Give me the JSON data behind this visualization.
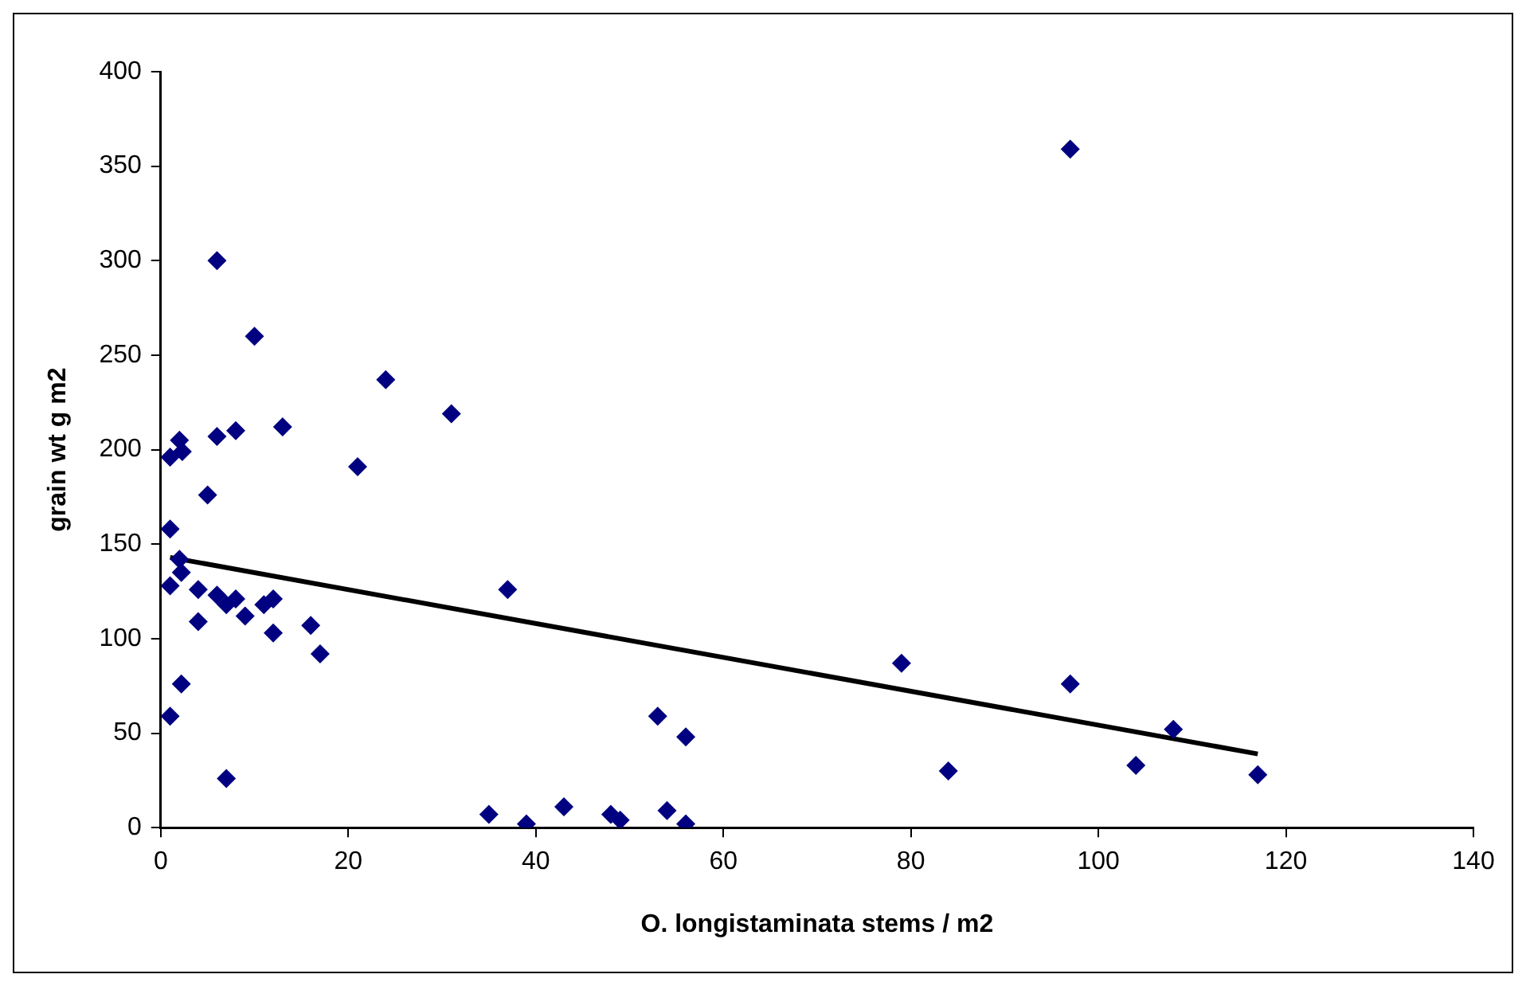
{
  "chart_data": {
    "type": "scatter",
    "xlabel": "O. longistaminata stems / m2",
    "ylabel": "grain wt g m2",
    "xlim": [
      0,
      140
    ],
    "xticks": [
      0,
      20,
      40,
      60,
      80,
      100,
      120,
      140
    ],
    "ylim": [
      0,
      400
    ],
    "yticks": [
      0,
      50,
      100,
      150,
      200,
      250,
      300,
      350,
      400
    ],
    "marker": "diamond",
    "series": [
      {
        "color": "#000080",
        "x": [
          6,
          10,
          24,
          31,
          1,
          2,
          2.3,
          6,
          8,
          13,
          21,
          5,
          1,
          2,
          2.2,
          1,
          4,
          6,
          7,
          8,
          9,
          11,
          12,
          4,
          12,
          16,
          17,
          2.2,
          1,
          7,
          37,
          35,
          39,
          43,
          48,
          49,
          53,
          56,
          54,
          56,
          79,
          97,
          97,
          84,
          104,
          108,
          117
        ],
        "values": [
          300,
          260,
          237,
          219,
          196,
          205,
          199,
          207,
          210,
          212,
          191,
          176,
          158,
          142,
          135,
          128,
          126,
          123,
          118,
          121,
          112,
          118,
          121,
          109,
          103,
          107,
          92,
          76,
          59,
          26,
          126,
          7,
          2,
          11,
          7,
          4,
          59,
          48,
          9,
          2,
          87,
          359,
          76,
          30,
          33,
          52,
          28
        ]
      },
      {
        "type": "line",
        "color": "#000000",
        "marker": "none",
        "x": [
          1,
          117
        ],
        "values": [
          143,
          39
        ]
      }
    ]
  }
}
